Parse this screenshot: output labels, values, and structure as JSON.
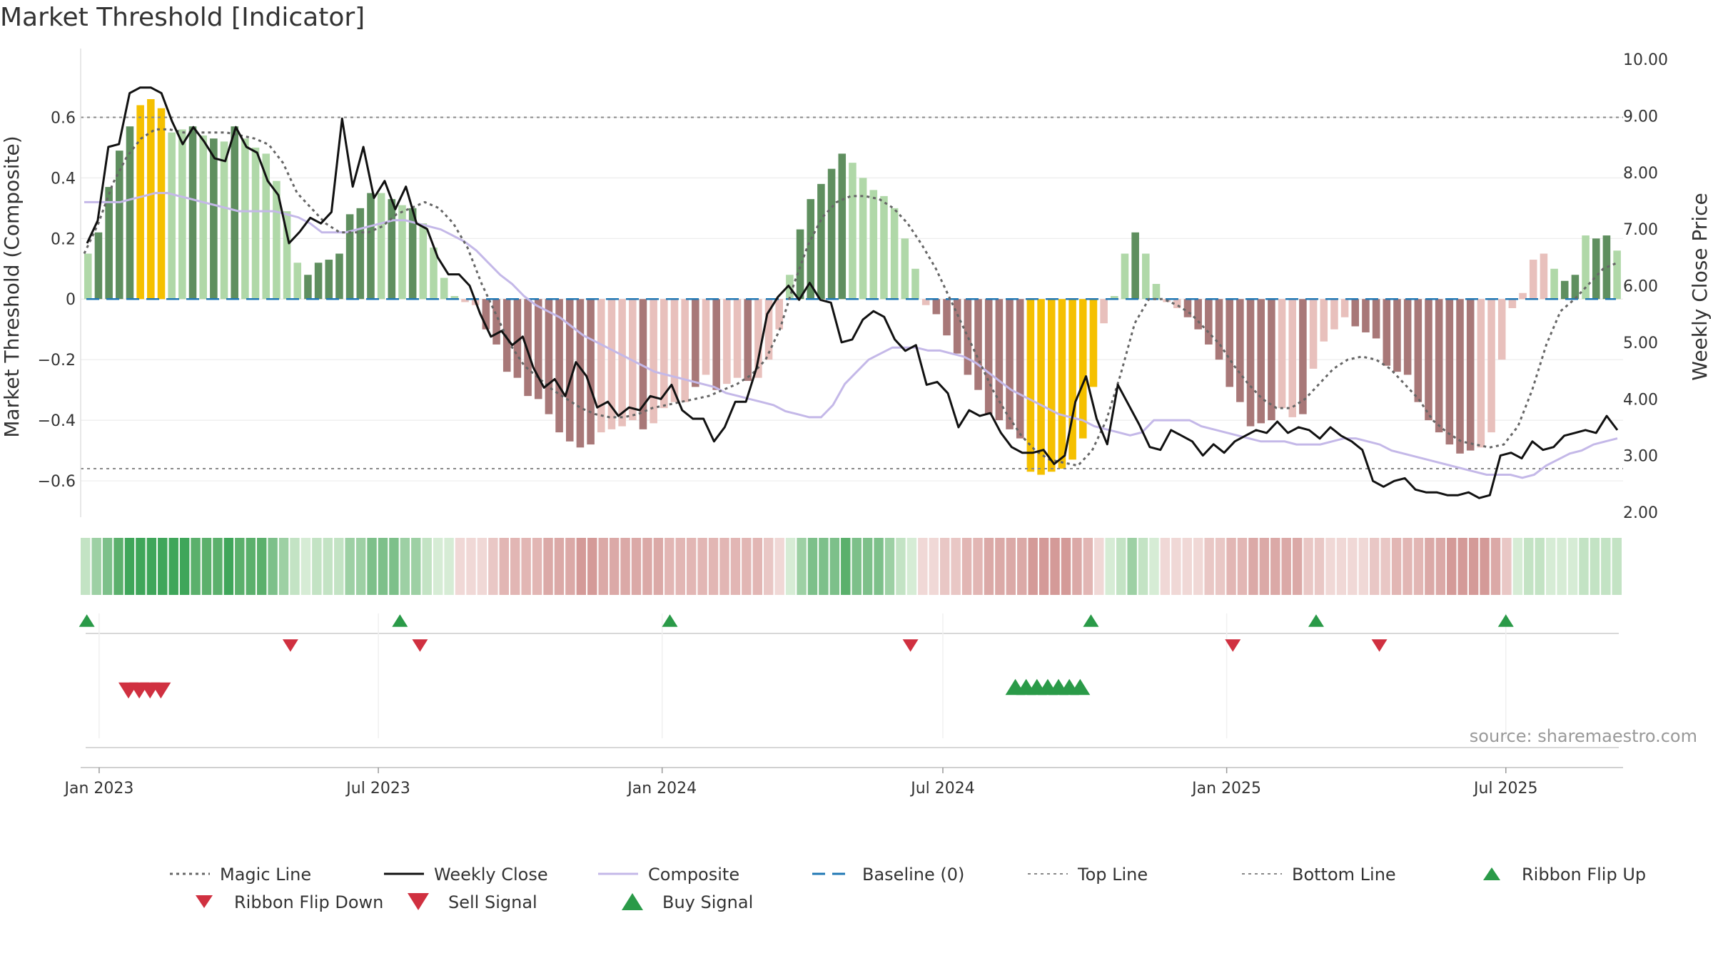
{
  "page": {
    "title": "Market Threshold [Indicator]"
  },
  "source_label": "source: sharemaestro.com",
  "colors": {
    "dark_green": "#5f8f5f",
    "light_green": "#b0d8a8",
    "dark_red": "#a87878",
    "light_red": "#e8c0bc",
    "gold": "#f5c000",
    "weekly_close": "#111111",
    "composite": "#c4b8e8",
    "magic_line": "#666666",
    "baseline": "#1f77b4",
    "ref_lines": "#888888",
    "signal_green": "#2a9a48",
    "signal_red": "#d03040"
  },
  "chart_data": {
    "type": "bar",
    "title": "Market Threshold [Indicator]",
    "left_axis": {
      "label": "Market Threshold (Composite)",
      "ylim": [
        -0.72,
        0.74
      ],
      "ticks": [
        "0.6",
        "0.4",
        "0.2",
        "0",
        "−0.2",
        "−0.4",
        "−0.6"
      ],
      "tick_values": [
        0.6,
        0.4,
        0.2,
        0,
        -0.2,
        -0.4,
        -0.6
      ]
    },
    "right_axis": {
      "label": "Weekly Close Price",
      "ylim": [
        2.0,
        10.0
      ],
      "ticks": [
        "10.00",
        "9.00",
        "8.00",
        "7.00",
        "6.00",
        "5.00",
        "4.00",
        "3.00",
        "2.00"
      ],
      "tick_values": [
        10,
        9,
        8,
        7,
        6,
        5,
        4,
        3,
        2
      ]
    },
    "x_axis": {
      "start": "2022-12-20",
      "end": "2025-09-15",
      "ticks": [
        {
          "label": "Jan 2023",
          "date": "2023-01-01"
        },
        {
          "label": "Jul 2023",
          "date": "2023-07-01"
        },
        {
          "label": "Jan 2024",
          "date": "2024-01-01"
        },
        {
          "label": "Jul 2024",
          "date": "2024-07-01"
        },
        {
          "label": "Jan 2025",
          "date": "2025-01-01"
        },
        {
          "label": "Jul 2025",
          "date": "2025-07-01"
        }
      ]
    },
    "top_line": 0.6,
    "bottom_line": -0.56,
    "baseline": 0,
    "bar_values": [
      0.15,
      0.22,
      0.37,
      0.49,
      0.57,
      0.64,
      0.66,
      0.63,
      0.55,
      0.56,
      0.57,
      0.54,
      0.53,
      0.52,
      0.57,
      0.53,
      0.5,
      0.48,
      0.39,
      0.29,
      0.12,
      0.08,
      0.12,
      0.13,
      0.15,
      0.28,
      0.3,
      0.35,
      0.35,
      0.33,
      0.31,
      0.3,
      0.25,
      0.17,
      0.07,
      0.01,
      -0.01,
      -0.02,
      -0.1,
      -0.15,
      -0.24,
      -0.26,
      -0.32,
      -0.33,
      -0.38,
      -0.44,
      -0.47,
      -0.49,
      -0.48,
      -0.44,
      -0.43,
      -0.42,
      -0.4,
      -0.43,
      -0.41,
      -0.36,
      -0.34,
      -0.34,
      -0.29,
      -0.25,
      -0.3,
      -0.28,
      -0.26,
      -0.27,
      -0.26,
      -0.2,
      -0.1,
      0.08,
      0.23,
      0.33,
      0.38,
      0.43,
      0.48,
      0.45,
      0.4,
      0.36,
      0.34,
      0.3,
      0.2,
      0.1,
      -0.02,
      -0.05,
      -0.12,
      -0.18,
      -0.25,
      -0.3,
      -0.38,
      -0.4,
      -0.43,
      -0.46,
      -0.57,
      -0.58,
      -0.57,
      -0.56,
      -0.53,
      -0.46,
      -0.29,
      -0.08,
      0.01,
      0.15,
      0.22,
      0.15,
      0.05,
      -0.01,
      -0.03,
      -0.06,
      -0.1,
      -0.15,
      -0.2,
      -0.29,
      -0.34,
      -0.42,
      -0.41,
      -0.4,
      -0.36,
      -0.39,
      -0.38,
      -0.23,
      -0.14,
      -0.1,
      -0.06,
      -0.09,
      -0.11,
      -0.13,
      -0.22,
      -0.24,
      -0.25,
      -0.34,
      -0.4,
      -0.44,
      -0.48,
      -0.51,
      -0.5,
      -0.49,
      -0.44,
      -0.2,
      -0.03,
      0.02,
      0.13,
      0.15,
      0.1,
      0.06,
      0.08,
      0.21,
      0.2,
      0.21,
      0.16
    ],
    "bar_classes": [
      "lg",
      "dg",
      "dg",
      "dg",
      "dg",
      "au",
      "au",
      "au",
      "lg",
      "lg",
      "dg",
      "lg",
      "dg",
      "lg",
      "dg",
      "lg",
      "lg",
      "lg",
      "lg",
      "lg",
      "lg",
      "dg",
      "dg",
      "dg",
      "dg",
      "dg",
      "dg",
      "dg",
      "lg",
      "dg",
      "lg",
      "dg",
      "lg",
      "lg",
      "lg",
      "lg",
      "lr",
      "lr",
      "dr",
      "dr",
      "dr",
      "dr",
      "dr",
      "dr",
      "dr",
      "dr",
      "dr",
      "dr",
      "dr",
      "lr",
      "lr",
      "lr",
      "lr",
      "dr",
      "lr",
      "lr",
      "lr",
      "lr",
      "dr",
      "lr",
      "dr",
      "lr",
      "lr",
      "dr",
      "lr",
      "lr",
      "lr",
      "lg",
      "dg",
      "dg",
      "dg",
      "dg",
      "dg",
      "lg",
      "lg",
      "lg",
      "lg",
      "lg",
      "lg",
      "lg",
      "lr",
      "dr",
      "dr",
      "dr",
      "dr",
      "dr",
      "dr",
      "dr",
      "dr",
      "dr",
      "au",
      "au",
      "au",
      "au",
      "au",
      "au",
      "au",
      "lr",
      "lg",
      "lg",
      "dg",
      "lg",
      "lg",
      "lr",
      "lr",
      "dr",
      "dr",
      "dr",
      "dr",
      "dr",
      "dr",
      "dr",
      "dr",
      "dr",
      "lr",
      "lr",
      "dr",
      "lr",
      "lr",
      "lr",
      "lr",
      "dr",
      "dr",
      "dr",
      "dr",
      "dr",
      "dr",
      "dr",
      "dr",
      "dr",
      "dr",
      "dr",
      "dr",
      "lr",
      "lr",
      "lr",
      "lr",
      "lr",
      "lr",
      "lr",
      "lg",
      "dg",
      "dg",
      "lg",
      "dg",
      "dg",
      "lg",
      "dg",
      "lg"
    ],
    "series": [
      {
        "name": "Weekly Close",
        "axis": "right",
        "values": [
          6.75,
          7.15,
          8.45,
          8.5,
          9.4,
          9.5,
          9.5,
          9.4,
          8.9,
          8.5,
          8.8,
          8.55,
          8.25,
          8.2,
          8.8,
          8.45,
          8.35,
          7.85,
          7.6,
          6.75,
          6.95,
          7.2,
          7.1,
          7.3,
          8.95,
          7.75,
          8.45,
          7.55,
          7.85,
          7.35,
          7.75,
          7.1,
          7.0,
          6.5,
          6.2,
          6.2,
          6.0,
          5.5,
          5.1,
          5.2,
          4.95,
          5.1,
          4.55,
          4.2,
          4.35,
          4.05,
          4.65,
          4.4,
          3.85,
          3.95,
          3.7,
          3.85,
          3.8,
          4.05,
          4.0,
          4.25,
          3.8,
          3.65,
          3.65,
          3.25,
          3.5,
          3.95,
          3.95,
          4.55,
          5.5,
          5.8,
          6.0,
          5.75,
          6.05,
          5.75,
          5.7,
          5.0,
          5.05,
          5.4,
          5.55,
          5.45,
          5.05,
          4.85,
          4.95,
          4.25,
          4.3,
          4.1,
          3.5,
          3.8,
          3.7,
          3.75,
          3.4,
          3.15,
          3.05,
          3.05,
          3.1,
          2.85,
          3.0,
          3.95,
          4.4,
          3.65,
          3.2,
          4.25,
          3.9,
          3.55,
          3.15,
          3.1,
          3.45,
          3.35,
          3.25,
          3.0,
          3.2,
          3.05,
          3.25,
          3.35,
          3.45,
          3.4,
          3.6,
          3.4,
          3.5,
          3.45,
          3.3,
          3.5,
          3.35,
          3.25,
          3.1,
          2.55,
          2.45,
          2.55,
          2.6,
          2.4,
          2.35,
          2.35,
          2.3,
          2.3,
          2.35,
          2.25,
          2.3,
          3.0,
          3.05,
          2.95,
          3.25,
          3.1,
          3.15,
          3.35,
          3.4,
          3.45,
          3.4,
          3.7,
          3.45
        ]
      },
      {
        "name": "Composite",
        "axis": "left",
        "values": [
          0.32,
          0.32,
          0.32,
          0.32,
          0.33,
          0.34,
          0.35,
          0.35,
          0.34,
          0.33,
          0.32,
          0.31,
          0.3,
          0.29,
          0.29,
          0.29,
          0.29,
          0.28,
          0.27,
          0.25,
          0.22,
          0.22,
          0.22,
          0.23,
          0.24,
          0.25,
          0.26,
          0.26,
          0.25,
          0.24,
          0.23,
          0.21,
          0.19,
          0.16,
          0.12,
          0.08,
          0.05,
          0.01,
          -0.02,
          -0.04,
          -0.06,
          -0.09,
          -0.12,
          -0.14,
          -0.16,
          -0.18,
          -0.2,
          -0.22,
          -0.24,
          -0.25,
          -0.26,
          -0.27,
          -0.28,
          -0.29,
          -0.31,
          -0.32,
          -0.33,
          -0.34,
          -0.35,
          -0.37,
          -0.38,
          -0.39,
          -0.39,
          -0.35,
          -0.28,
          -0.24,
          -0.2,
          -0.18,
          -0.16,
          -0.16,
          -0.16,
          -0.17,
          -0.17,
          -0.18,
          -0.19,
          -0.21,
          -0.24,
          -0.27,
          -0.3,
          -0.32,
          -0.34,
          -0.36,
          -0.38,
          -0.39,
          -0.4,
          -0.42,
          -0.43,
          -0.44,
          -0.45,
          -0.44,
          -0.4,
          -0.4,
          -0.4,
          -0.4,
          -0.42,
          -0.43,
          -0.44,
          -0.45,
          -0.46,
          -0.47,
          -0.47,
          -0.47,
          -0.48,
          -0.48,
          -0.48,
          -0.47,
          -0.46,
          -0.46,
          -0.47,
          -0.48,
          -0.5,
          -0.51,
          -0.52,
          -0.53,
          -0.54,
          -0.55,
          -0.56,
          -0.57,
          -0.58,
          -0.58,
          -0.58,
          -0.59,
          -0.58,
          -0.55,
          -0.53,
          -0.51,
          -0.5,
          -0.48,
          -0.47,
          -0.46
        ]
      },
      {
        "name": "Magic Line",
        "axis": "left",
        "values": [
          0.15,
          0.25,
          0.38,
          0.47,
          0.53,
          0.56,
          0.56,
          0.55,
          0.55,
          0.55,
          0.55,
          0.54,
          0.53,
          0.51,
          0.45,
          0.35,
          0.3,
          0.25,
          0.22,
          0.22,
          0.22,
          0.24,
          0.28,
          0.3,
          0.32,
          0.3,
          0.25,
          0.17,
          0.05,
          -0.05,
          -0.15,
          -0.22,
          -0.26,
          -0.3,
          -0.33,
          -0.36,
          -0.38,
          -0.39,
          -0.39,
          -0.38,
          -0.36,
          -0.35,
          -0.34,
          -0.33,
          -0.32,
          -0.3,
          -0.28,
          -0.25,
          -0.2,
          -0.1,
          0.05,
          0.18,
          0.27,
          0.32,
          0.34,
          0.34,
          0.33,
          0.3,
          0.25,
          0.18,
          0.1,
          0.0,
          -0.1,
          -0.2,
          -0.3,
          -0.38,
          -0.45,
          -0.5,
          -0.53,
          -0.54,
          -0.55,
          -0.5,
          -0.4,
          -0.25,
          -0.08,
          0.0,
          0.0,
          -0.02,
          -0.05,
          -0.1,
          -0.15,
          -0.22,
          -0.28,
          -0.33,
          -0.36,
          -0.36,
          -0.33,
          -0.28,
          -0.23,
          -0.2,
          -0.19,
          -0.2,
          -0.23,
          -0.28,
          -0.33,
          -0.4,
          -0.44,
          -0.47,
          -0.48,
          -0.49,
          -0.48,
          -0.42,
          -0.3,
          -0.15,
          -0.04,
          0.0,
          0.05,
          0.1,
          0.12
        ]
      },
      {
        "name": "Baseline (0)",
        "axis": "left",
        "value": 0
      },
      {
        "name": "Top Line",
        "axis": "left",
        "value": 0.6
      },
      {
        "name": "Bottom Line",
        "axis": "left",
        "value": -0.56
      }
    ],
    "ribbon_flip_up": [
      "2022-12-24",
      "2023-07-15",
      "2024-01-06",
      "2024-10-05",
      "2025-02-28",
      "2025-07-01"
    ],
    "ribbon_flip_down": [
      "2023-05-05",
      "2023-07-28",
      "2024-06-10",
      "2025-01-05",
      "2025-04-10"
    ],
    "sell_signal": [
      "2023-01-20",
      "2023-01-27",
      "2023-02-03",
      "2023-02-10"
    ],
    "buy_signal": [
      "2024-08-17",
      "2024-08-24",
      "2024-08-31",
      "2024-09-07",
      "2024-09-14",
      "2024-09-21",
      "2024-09-28"
    ],
    "legend": [
      {
        "label": "Magic Line",
        "symbol": "dotted"
      },
      {
        "label": "Weekly Close",
        "symbol": "solid"
      },
      {
        "label": "Composite",
        "symbol": "solid-lavender"
      },
      {
        "label": "Baseline (0)",
        "symbol": "dashed-blue"
      },
      {
        "label": "Top Line",
        "symbol": "dotted-gray"
      },
      {
        "label": "Bottom Line",
        "symbol": "dotted-gray"
      },
      {
        "label": "Ribbon Flip Up",
        "symbol": "triangle-up-green"
      },
      {
        "label": "Ribbon Flip Down",
        "symbol": "triangle-down-red"
      },
      {
        "label": "Sell Signal",
        "symbol": "triangle-down-red-large"
      },
      {
        "label": "Buy Signal",
        "symbol": "triangle-up-green-large"
      }
    ]
  }
}
